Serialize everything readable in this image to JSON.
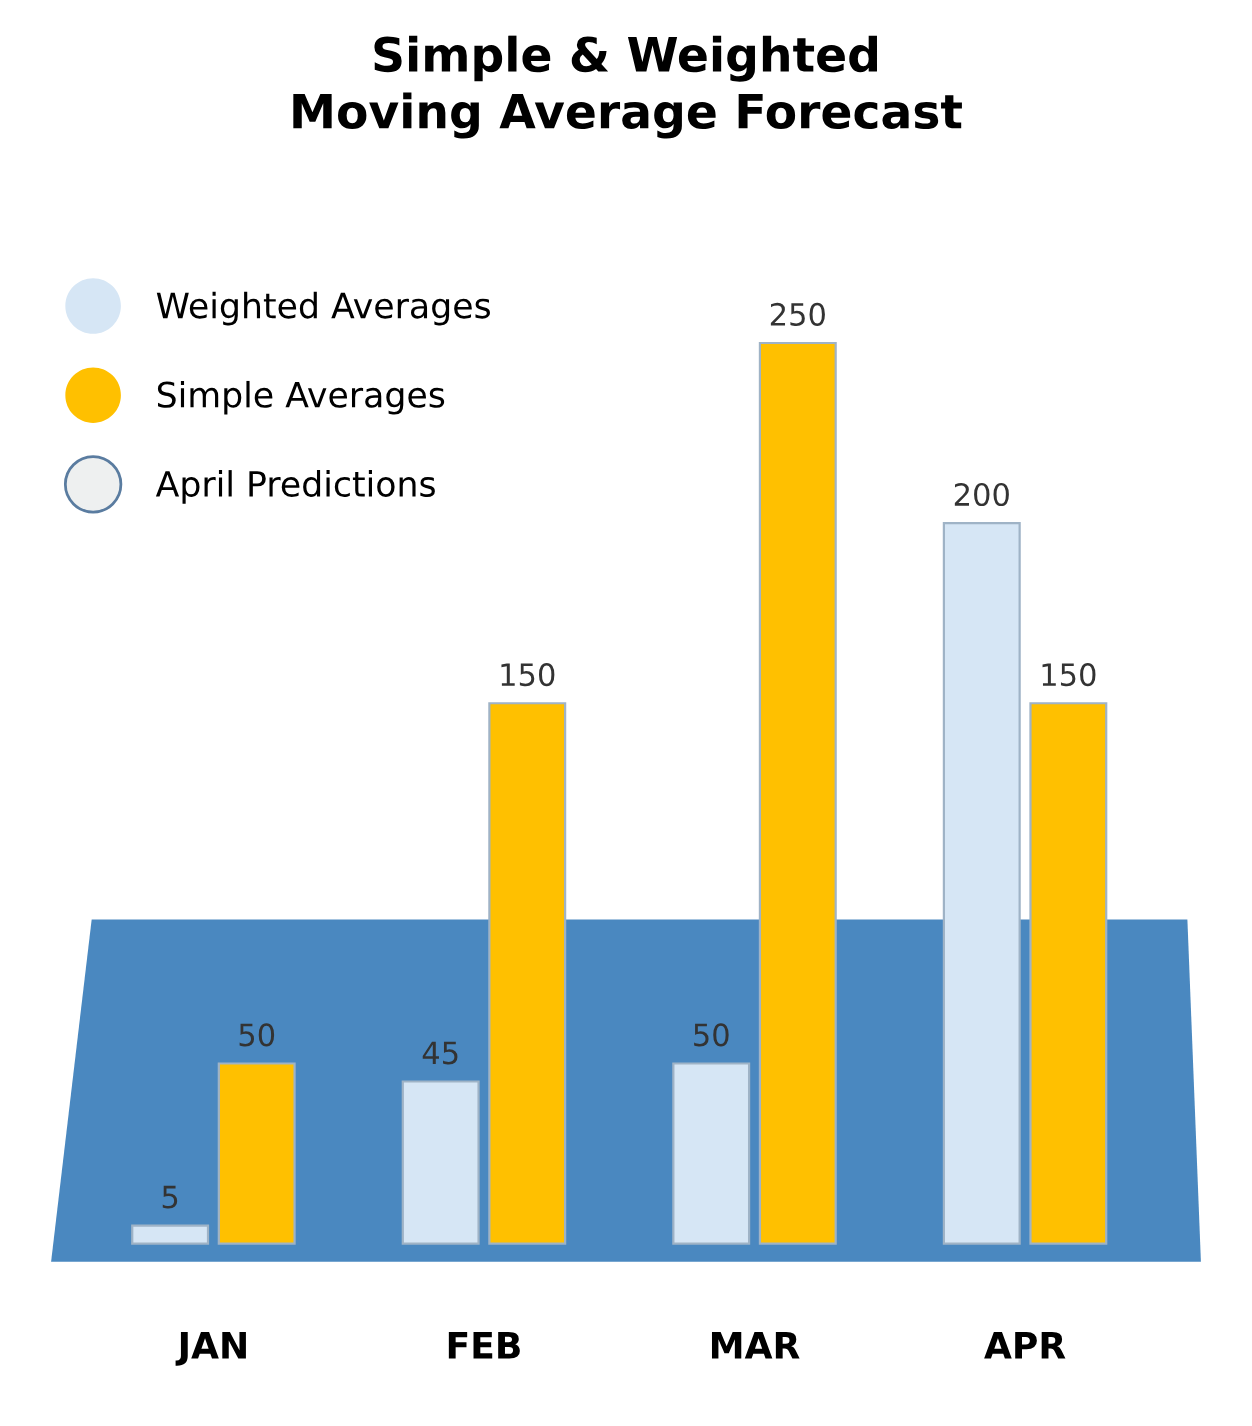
{
  "chart_data": {
    "type": "bar",
    "title": "Simple & Weighted\nMoving Average Forecast",
    "categories": [
      "JAN",
      "FEB",
      "MAR",
      "APR"
    ],
    "series": [
      {
        "name": "Weighted Averages",
        "color": "#d6e6f5",
        "values": [
          5,
          45,
          50,
          200
        ]
      },
      {
        "name": "Simple Averages",
        "color": "#ffc000",
        "values": [
          50,
          150,
          250,
          150
        ]
      },
      {
        "name": "April Predictions",
        "color": "#eef0f0",
        "values": [
          null,
          null,
          null,
          null
        ]
      }
    ],
    "data_labels": true,
    "legend": "top left",
    "grid": false
  }
}
